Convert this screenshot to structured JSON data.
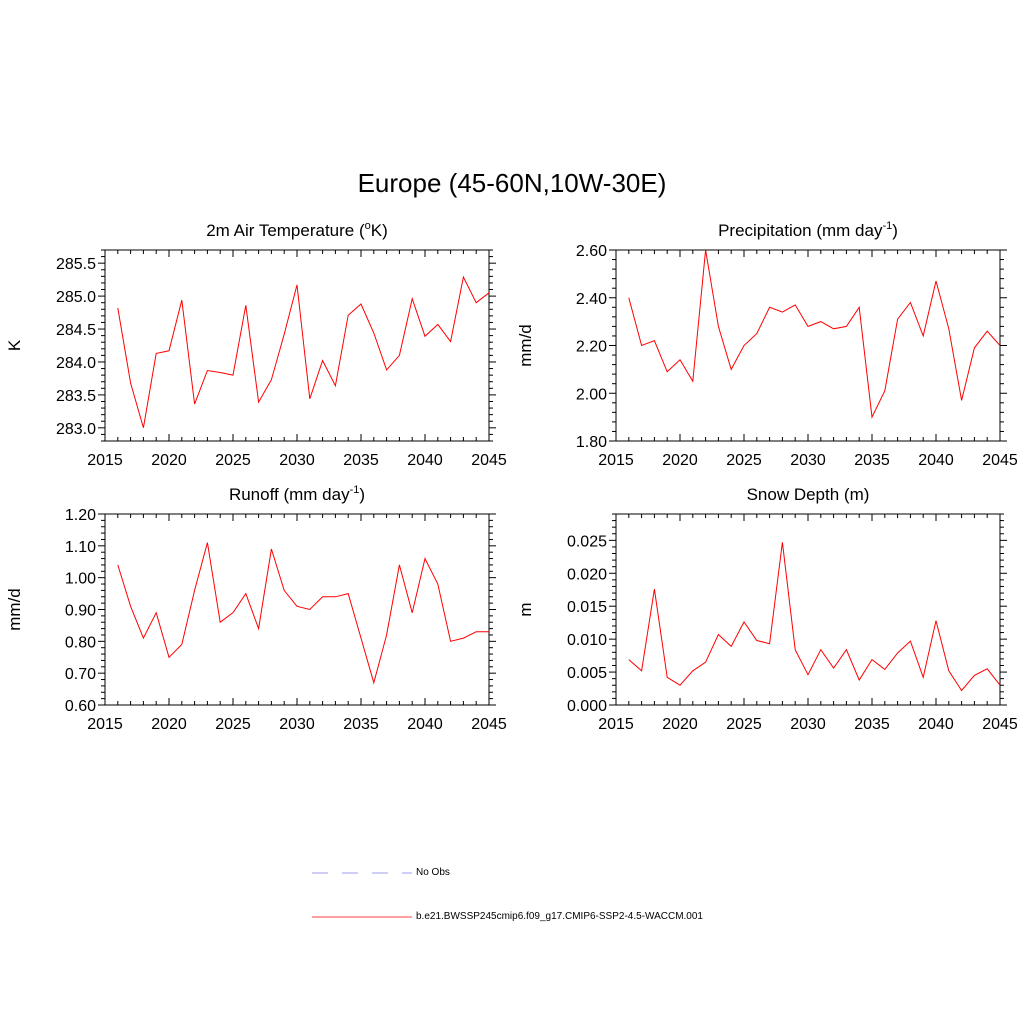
{
  "figure": {
    "title": "Europe (45-60N,10W-30E)"
  },
  "chart_data": [
    {
      "type": "line",
      "title_parts": [
        "2m Air Temperature (",
        "o",
        "K)"
      ],
      "title_style": "sup",
      "ylabel": "K",
      "xlabel": "",
      "xlim": [
        2015,
        2045
      ],
      "ylim": [
        282.8,
        285.7
      ],
      "xticks": [
        2015,
        2020,
        2025,
        2030,
        2035,
        2040,
        2045
      ],
      "xtick_labels": [
        "2015",
        "2020",
        "2025",
        "2030",
        "2035",
        "2040",
        "2045"
      ],
      "yticks": [
        283.0,
        283.5,
        284.0,
        284.5,
        285.0,
        285.5
      ],
      "ytick_labels": [
        "283.0",
        "283.5",
        "284.0",
        "284.5",
        "285.0",
        "285.5"
      ],
      "series": [
        {
          "name": "b.e21.BWSSP245cmip6.f09_g17.CMIP6-SSP2-4.5-WACCM.001",
          "color": "#ff0000",
          "x": [
            2016,
            2017,
            2018,
            2019,
            2020,
            2021,
            2022,
            2023,
            2024,
            2025,
            2026,
            2027,
            2028,
            2029,
            2030,
            2031,
            2032,
            2033,
            2034,
            2035,
            2036,
            2037,
            2038,
            2039,
            2040,
            2041,
            2042,
            2043,
            2044,
            2045
          ],
          "values": [
            284.82,
            283.68,
            283.0,
            284.13,
            284.17,
            284.94,
            283.36,
            283.87,
            283.84,
            283.8,
            284.86,
            283.39,
            283.73,
            284.42,
            285.17,
            283.44,
            284.02,
            283.64,
            284.71,
            284.88,
            284.44,
            283.88,
            284.1,
            284.96,
            284.39,
            284.57,
            284.31,
            285.29,
            284.9,
            285.05
          ]
        }
      ]
    },
    {
      "type": "line",
      "title_parts": [
        "Precipitation (mm day",
        "-1",
        ")"
      ],
      "title_style": "sup",
      "ylabel": "mm/d",
      "xlabel": "",
      "xlim": [
        2015,
        2045
      ],
      "ylim": [
        1.8,
        2.6
      ],
      "xticks": [
        2015,
        2020,
        2025,
        2030,
        2035,
        2040,
        2045
      ],
      "xtick_labels": [
        "2015",
        "2020",
        "2025",
        "2030",
        "2035",
        "2040",
        "2045"
      ],
      "yticks": [
        1.8,
        2.0,
        2.2,
        2.4,
        2.6
      ],
      "ytick_labels": [
        "1.80",
        "2.00",
        "2.20",
        "2.40",
        "2.60"
      ],
      "series": [
        {
          "name": "b.e21.BWSSP245cmip6.f09_g17.CMIP6-SSP2-4.5-WACCM.001",
          "color": "#ff0000",
          "x": [
            2016,
            2017,
            2018,
            2019,
            2020,
            2021,
            2022,
            2023,
            2024,
            2025,
            2026,
            2027,
            2028,
            2029,
            2030,
            2031,
            2032,
            2033,
            2034,
            2035,
            2036,
            2037,
            2038,
            2039,
            2040,
            2041,
            2042,
            2043,
            2044,
            2045
          ],
          "values": [
            2.4,
            2.2,
            2.22,
            2.09,
            2.14,
            2.05,
            2.6,
            2.28,
            2.1,
            2.2,
            2.25,
            2.36,
            2.34,
            2.37,
            2.28,
            2.3,
            2.27,
            2.28,
            2.36,
            1.9,
            2.01,
            2.31,
            2.38,
            2.24,
            2.47,
            2.27,
            1.97,
            2.19,
            2.26,
            2.2
          ]
        }
      ]
    },
    {
      "type": "line",
      "title_parts": [
        "Runoff (mm day",
        "-1",
        ")"
      ],
      "title_style": "sup",
      "ylabel": "mm/d",
      "xlabel": "",
      "xlim": [
        2015,
        2045
      ],
      "ylim": [
        0.6,
        1.2
      ],
      "xticks": [
        2015,
        2020,
        2025,
        2030,
        2035,
        2040,
        2045
      ],
      "xtick_labels": [
        "2015",
        "2020",
        "2025",
        "2030",
        "2035",
        "2040",
        "2045"
      ],
      "yticks": [
        0.6,
        0.7,
        0.8,
        0.9,
        1.0,
        1.1,
        1.2
      ],
      "ytick_labels": [
        "0.60",
        "0.70",
        "0.80",
        "0.90",
        "1.00",
        "1.10",
        "1.20"
      ],
      "series": [
        {
          "name": "b.e21.BWSSP245cmip6.f09_g17.CMIP6-SSP2-4.5-WACCM.001",
          "color": "#ff0000",
          "x": [
            2016,
            2017,
            2018,
            2019,
            2020,
            2021,
            2022,
            2023,
            2024,
            2025,
            2026,
            2027,
            2028,
            2029,
            2030,
            2031,
            2032,
            2033,
            2034,
            2035,
            2036,
            2037,
            2038,
            2039,
            2040,
            2041,
            2042,
            2043,
            2044,
            2045
          ],
          "values": [
            1.04,
            0.91,
            0.81,
            0.89,
            0.75,
            0.79,
            0.96,
            1.11,
            0.86,
            0.89,
            0.95,
            0.84,
            1.09,
            0.96,
            0.91,
            0.9,
            0.94,
            0.94,
            0.95,
            0.81,
            0.67,
            0.82,
            1.04,
            0.89,
            1.06,
            0.98,
            0.8,
            0.81,
            0.83,
            0.83
          ]
        }
      ]
    },
    {
      "type": "line",
      "title_parts": [
        "Snow Depth (m)"
      ],
      "title_style": "plain",
      "ylabel": "m",
      "xlabel": "",
      "xlim": [
        2015,
        2045
      ],
      "ylim": [
        0.0,
        0.029
      ],
      "xticks": [
        2015,
        2020,
        2025,
        2030,
        2035,
        2040,
        2045
      ],
      "xtick_labels": [
        "2015",
        "2020",
        "2025",
        "2030",
        "2035",
        "2040",
        "2045"
      ],
      "yticks": [
        0.0,
        0.005,
        0.01,
        0.015,
        0.02,
        0.025
      ],
      "ytick_labels": [
        "0.000",
        "0.005",
        "0.010",
        "0.015",
        "0.020",
        "0.025"
      ],
      "series": [
        {
          "name": "b.e21.BWSSP245cmip6.f09_g17.CMIP6-SSP2-4.5-WACCM.001",
          "color": "#ff0000",
          "x": [
            2016,
            2017,
            2018,
            2019,
            2020,
            2021,
            2022,
            2023,
            2024,
            2025,
            2026,
            2027,
            2028,
            2029,
            2030,
            2031,
            2032,
            2033,
            2034,
            2035,
            2036,
            2037,
            2038,
            2039,
            2040,
            2041,
            2042,
            2043,
            2044,
            2045
          ],
          "values": [
            0.0069,
            0.0052,
            0.0176,
            0.0042,
            0.003,
            0.0052,
            0.0065,
            0.0107,
            0.0089,
            0.0126,
            0.0098,
            0.0093,
            0.0247,
            0.0084,
            0.0046,
            0.0084,
            0.0056,
            0.0084,
            0.0038,
            0.0069,
            0.0054,
            0.0079,
            0.0097,
            0.0042,
            0.0128,
            0.0052,
            0.0022,
            0.0045,
            0.0055,
            0.003
          ]
        }
      ]
    }
  ],
  "legend": {
    "items": [
      {
        "label": "No Obs",
        "color": "#b0b0f0",
        "style": "dashed"
      },
      {
        "label": "b.e21.BWSSP245cmip6.f09_g17.CMIP6-SSP2-4.5-WACCM.001",
        "color": "#ff6666",
        "style": "solid"
      }
    ]
  }
}
